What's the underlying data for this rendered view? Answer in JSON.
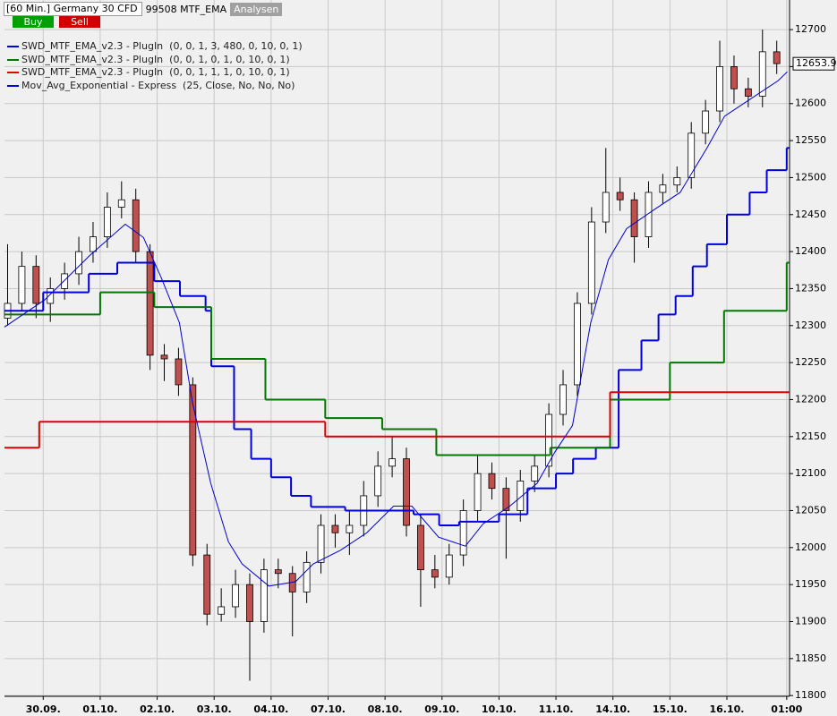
{
  "chart_data": {
    "type": "candlestick",
    "header": {
      "instrument": "[60 Min.] Germany 30 CFD",
      "strategy": "99508 MTF_EMA",
      "analysis_button": "Analysen",
      "buy_button": "Buy",
      "sell_button": "Sell"
    },
    "xlim": [
      -0.68,
      13.1
    ],
    "xticks": [
      {
        "value": 0,
        "label": "30.09."
      },
      {
        "value": 1,
        "label": "01.10."
      },
      {
        "value": 2,
        "label": "02.10."
      },
      {
        "value": 3,
        "label": "03.10."
      },
      {
        "value": 4,
        "label": "04.10."
      },
      {
        "value": 5,
        "label": "07.10."
      },
      {
        "value": 6,
        "label": "08.10."
      },
      {
        "value": 7,
        "label": "09.10."
      },
      {
        "value": 8,
        "label": "10.10."
      },
      {
        "value": 9,
        "label": "11.10."
      },
      {
        "value": 10,
        "label": "14.10."
      },
      {
        "value": 11,
        "label": "15.10."
      },
      {
        "value": 12,
        "label": "16.10."
      },
      {
        "value": 13.05,
        "label": "01:00"
      }
    ],
    "ylim": [
      11799,
      12740
    ],
    "yticks": [
      11800,
      11850,
      11900,
      11950,
      12000,
      12050,
      12100,
      12150,
      12200,
      12250,
      12300,
      12350,
      12400,
      12450,
      12500,
      12550,
      12600,
      12650,
      12700
    ],
    "grid": true,
    "last_price": 12653.9,
    "candles": {
      "up_color": "#ffffff",
      "down_color": "#c0504d",
      "x": [
        -0.625,
        -0.375,
        -0.125,
        0.125,
        0.375,
        0.625,
        0.875,
        1.125,
        1.375,
        1.625,
        1.875,
        2.125,
        2.375,
        2.625,
        2.875,
        3.125,
        3.375,
        3.625,
        3.875,
        4.125,
        4.375,
        4.625,
        4.875,
        5.125,
        5.375,
        5.625,
        5.875,
        6.125,
        6.375,
        6.625,
        6.875,
        7.125,
        7.375,
        7.625,
        7.875,
        8.125,
        8.375,
        8.625,
        8.875,
        9.125,
        9.375,
        9.625,
        9.875,
        10.125,
        10.375,
        10.625,
        10.875,
        11.125,
        11.375,
        11.625,
        11.875,
        12.125,
        12.375,
        12.625,
        12.875
      ],
      "open": [
        12310,
        12330,
        12380,
        12330,
        12350,
        12370,
        12400,
        12420,
        12460,
        12470,
        12400,
        12260,
        12255,
        12220,
        11990,
        11910,
        11920,
        11950,
        11900,
        11970,
        11965,
        11940,
        11980,
        12030,
        12020,
        12030,
        12070,
        12110,
        12120,
        12030,
        11970,
        11960,
        11990,
        12050,
        12100,
        12080,
        12050,
        12090,
        12110,
        12180,
        12220,
        12330,
        12440,
        12480,
        12470,
        12420,
        12480,
        12490,
        12500,
        12560,
        12590,
        12650,
        12620,
        12610,
        12670
      ],
      "high": [
        12410,
        12400,
        12395,
        12365,
        12385,
        12420,
        12440,
        12480,
        12495,
        12485,
        12410,
        12275,
        12270,
        12230,
        12005,
        11945,
        11970,
        11965,
        11985,
        11985,
        11975,
        11995,
        12045,
        12045,
        12050,
        12090,
        12130,
        12150,
        12135,
        12045,
        11990,
        12005,
        12065,
        12125,
        12115,
        12095,
        12105,
        12125,
        12195,
        12240,
        12345,
        12460,
        12540,
        12500,
        12480,
        12495,
        12505,
        12515,
        12575,
        12605,
        12685,
        12665,
        12635,
        12700,
        12685
      ],
      "low": [
        12300,
        12320,
        12310,
        12305,
        12335,
        12355,
        12385,
        12405,
        12445,
        12385,
        12240,
        12225,
        12205,
        11975,
        11895,
        11900,
        11905,
        11820,
        11885,
        11945,
        11880,
        11925,
        11965,
        12000,
        11990,
        12015,
        12055,
        12095,
        12015,
        11920,
        11945,
        11950,
        11975,
        12035,
        12065,
        11985,
        12035,
        12075,
        12095,
        12165,
        12205,
        12315,
        12425,
        12455,
        12385,
        12405,
        12465,
        12480,
        12485,
        12545,
        12575,
        12600,
        12595,
        12595,
        12640
      ],
      "close": [
        12330,
        12380,
        12330,
        12350,
        12370,
        12400,
        12420,
        12460,
        12470,
        12400,
        12260,
        12255,
        12220,
        11990,
        11910,
        11920,
        11950,
        11900,
        11970,
        11965,
        11940,
        11980,
        12030,
        12020,
        12030,
        12070,
        12110,
        12120,
        12030,
        11970,
        11960,
        11990,
        12050,
        12100,
        12080,
        12050,
        12090,
        12110,
        12180,
        12220,
        12330,
        12440,
        12480,
        12470,
        12420,
        12480,
        12490,
        12500,
        12560,
        12590,
        12650,
        12620,
        12610,
        12670,
        12654
      ]
    },
    "series": [
      {
        "name": "SWD_MTF_EMA_v2.3 - PlugIn  (0, 0, 1, 3, 480, 0, 10, 0, 1)",
        "color": "#0000dd",
        "style": "step",
        "x": [
          -0.68,
          0,
          0.8,
          1.3,
          1.95,
          2.4,
          2.85,
          2.95,
          3.35,
          3.65,
          4.0,
          4.35,
          4.7,
          5.3,
          6.5,
          6.95,
          7.3,
          8.0,
          8.5,
          9.0,
          9.3,
          9.7,
          10.1,
          10.5,
          10.8,
          11.1,
          11.4,
          11.65,
          12.0,
          12.4,
          12.7,
          13.05
        ],
        "values": [
          12320,
          12345,
          12370,
          12385,
          12360,
          12340,
          12320,
          12245,
          12160,
          12120,
          12095,
          12070,
          12055,
          12050,
          12045,
          12030,
          12035,
          12045,
          12080,
          12100,
          12120,
          12135,
          12240,
          12280,
          12315,
          12340,
          12380,
          12410,
          12450,
          12480,
          12510,
          12540
        ]
      },
      {
        "name": "SWD_MTF_EMA_v2.3 - PlugIn  (0, 0, 1, 0, 1, 0, 10, 0, 1)",
        "color": "#007700",
        "style": "step",
        "x": [
          -0.68,
          1.0,
          1.95,
          2.95,
          3.9,
          4.95,
          5.95,
          6.9,
          8.9,
          9.95,
          11.0,
          11.95,
          13.05
        ],
        "values": [
          12315,
          12345,
          12325,
          12255,
          12200,
          12175,
          12160,
          12125,
          12135,
          12200,
          12250,
          12320,
          12385
        ]
      },
      {
        "name": "SWD_MTF_EMA_v2.3 - PlugIn  (0, 0, 1, 1, 1, 0, 10, 0, 1)",
        "color": "#dd0000",
        "style": "step",
        "x": [
          -0.68,
          -0.07,
          4.95,
          9.95
        ],
        "values": [
          12135,
          12170,
          12150,
          12210
        ]
      },
      {
        "name": "Mov_Avg_Exponential - Express  (25, Close, No, No, No)",
        "color": "#0000cc",
        "style": "line",
        "x": [
          -0.68,
          0.03,
          0.82,
          1.44,
          1.76,
          2.07,
          2.39,
          2.62,
          2.94,
          3.25,
          3.49,
          3.96,
          4.43,
          4.74,
          5.21,
          5.68,
          6.15,
          6.47,
          6.94,
          7.41,
          7.72,
          8.19,
          8.67,
          8.98,
          9.29,
          9.61,
          9.92,
          10.24,
          10.71,
          11.18,
          11.65,
          11.96,
          12.43,
          12.9,
          13.06
        ],
        "values": [
          12298,
          12335,
          12395,
          12437,
          12419,
          12365,
          12304,
          12196,
          12087,
          12008,
          11978,
          11948,
          11954,
          11978,
          11996,
          12020,
          12056,
          12056,
          12014,
          12002,
          12032,
          12056,
          12087,
          12129,
          12165,
          12304,
          12389,
          12431,
          12456,
          12480,
          12540,
          12583,
          12607,
          12631,
          12643
        ]
      }
    ]
  }
}
